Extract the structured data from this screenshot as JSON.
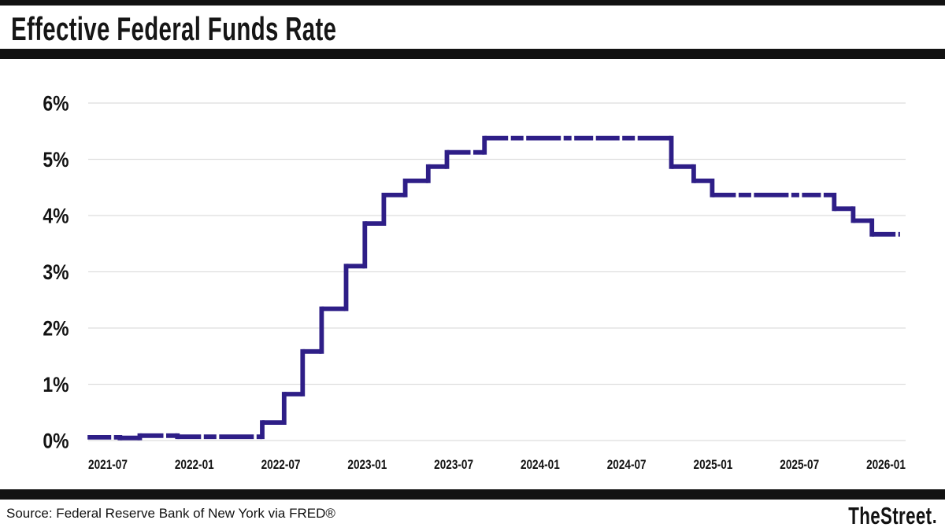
{
  "header": {
    "title": "Effective Federal Funds Rate"
  },
  "footer": {
    "source": "Source: Federal Reserve Bank of New York via FRED®",
    "brand": "TheStreet"
  },
  "colors": {
    "line": "#2e1e87",
    "bars": "#121212",
    "grid": "#dedede",
    "label": "#131313"
  },
  "chart_data": {
    "type": "line",
    "subtype": "step",
    "title": "Effective Federal Funds Rate",
    "unit": "percent",
    "grid": "horizontal",
    "legend": "none",
    "ylim": [
      0,
      6
    ],
    "y_ticks": [
      {
        "value": 0,
        "label": "0%"
      },
      {
        "value": 1,
        "label": "1%"
      },
      {
        "value": 2,
        "label": "2%"
      },
      {
        "value": 3,
        "label": "3%"
      },
      {
        "value": 4,
        "label": "4%"
      },
      {
        "value": 5,
        "label": "5%"
      },
      {
        "value": 6,
        "label": "6%"
      }
    ],
    "x_ticks": [
      "2021-07",
      "2022-01",
      "2022-07",
      "2023-01",
      "2023-07",
      "2024-01",
      "2024-07",
      "2025-01",
      "2025-07",
      "2026-01"
    ],
    "series": [
      {
        "name": "Effective Federal Funds Rate",
        "points": [
          {
            "date": "2021-02-22",
            "value": 0.07
          },
          {
            "date": "2021-05-03",
            "value": 0.06
          },
          {
            "date": "2021-06-17",
            "value": 0.1
          },
          {
            "date": "2021-09-10",
            "value": 0.08
          },
          {
            "date": "2022-03-17",
            "value": 0.33
          },
          {
            "date": "2022-05-05",
            "value": 0.83
          },
          {
            "date": "2022-06-16",
            "value": 1.58
          },
          {
            "date": "2022-07-28",
            "value": 2.33
          },
          {
            "date": "2022-09-22",
            "value": 3.08
          },
          {
            "date": "2022-11-03",
            "value": 3.83
          },
          {
            "date": "2022-12-15",
            "value": 4.33
          },
          {
            "date": "2023-02-02",
            "value": 4.58
          },
          {
            "date": "2023-03-23",
            "value": 4.83
          },
          {
            "date": "2023-05-04",
            "value": 5.08
          },
          {
            "date": "2023-07-27",
            "value": 5.33
          },
          {
            "date": "2024-09-19",
            "value": 4.83
          },
          {
            "date": "2024-11-08",
            "value": 4.58
          },
          {
            "date": "2024-12-19",
            "value": 4.33
          },
          {
            "date": "2025-09-18",
            "value": 4.09
          },
          {
            "date": "2025-10-30",
            "value": 3.88
          },
          {
            "date": "2025-12-11",
            "value": 3.64
          },
          {
            "date": "2026-02-13",
            "value": 3.64
          }
        ]
      }
    ]
  }
}
